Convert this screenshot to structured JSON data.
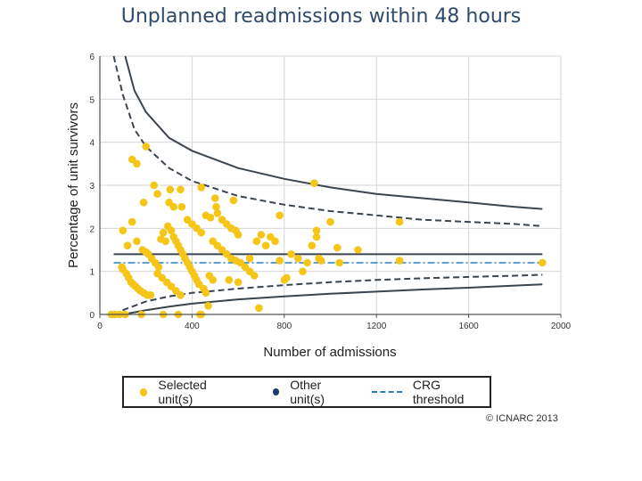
{
  "page_title": "Unplanned readmissions within 48 hours",
  "copyright": "© ICNARC 2013",
  "legend": {
    "selected": "Selected unit(s)",
    "other": "Other unit(s)",
    "threshold": "CRG threshold"
  },
  "colors": {
    "selected": "#f5c518",
    "other": "#1f3b66",
    "threshold": "#2a7fc0",
    "limits": "#3a4550",
    "title": "#2e4a6b"
  },
  "chart_data": {
    "type": "scatter",
    "title": "Unplanned readmissions within 48 hours",
    "xlabel": "Number of admissions",
    "ylabel": "Percentage of unit survivors",
    "xlim": [
      0,
      2000
    ],
    "ylim": [
      0,
      6
    ],
    "xticks": [
      0,
      400,
      800,
      1200,
      1600,
      2000
    ],
    "yticks": [
      0,
      1,
      2,
      3,
      4,
      5,
      6
    ],
    "grid": true,
    "national_average": 1.4,
    "crg_threshold": 1.2,
    "control_limits": [
      {
        "name": "upper 99.8%",
        "points": [
          [
            110,
            6.0
          ],
          [
            150,
            5.2
          ],
          [
            200,
            4.7
          ],
          [
            300,
            4.1
          ],
          [
            400,
            3.8
          ],
          [
            600,
            3.4
          ],
          [
            800,
            3.15
          ],
          [
            1000,
            2.95
          ],
          [
            1200,
            2.8
          ],
          [
            1400,
            2.7
          ],
          [
            1600,
            2.6
          ],
          [
            1800,
            2.5
          ],
          [
            1920,
            2.45
          ]
        ]
      },
      {
        "name": "upper 95%",
        "points": [
          [
            60,
            6.0
          ],
          [
            100,
            5.1
          ],
          [
            150,
            4.3
          ],
          [
            200,
            3.9
          ],
          [
            300,
            3.4
          ],
          [
            400,
            3.1
          ],
          [
            600,
            2.75
          ],
          [
            800,
            2.55
          ],
          [
            1000,
            2.4
          ],
          [
            1200,
            2.3
          ],
          [
            1400,
            2.2
          ],
          [
            1600,
            2.15
          ],
          [
            1800,
            2.1
          ],
          [
            1920,
            2.05
          ]
        ]
      },
      {
        "name": "lower 95%",
        "points": [
          [
            60,
            0.0
          ],
          [
            100,
            0.1
          ],
          [
            150,
            0.2
          ],
          [
            200,
            0.3
          ],
          [
            300,
            0.42
          ],
          [
            400,
            0.5
          ],
          [
            600,
            0.6
          ],
          [
            800,
            0.68
          ],
          [
            1000,
            0.75
          ],
          [
            1200,
            0.8
          ],
          [
            1400,
            0.84
          ],
          [
            1600,
            0.87
          ],
          [
            1800,
            0.9
          ],
          [
            1920,
            0.92
          ]
        ]
      },
      {
        "name": "lower 99.8%",
        "points": [
          [
            100,
            0.0
          ],
          [
            150,
            0.05
          ],
          [
            200,
            0.1
          ],
          [
            300,
            0.18
          ],
          [
            400,
            0.25
          ],
          [
            600,
            0.35
          ],
          [
            800,
            0.42
          ],
          [
            1000,
            0.48
          ],
          [
            1200,
            0.53
          ],
          [
            1400,
            0.58
          ],
          [
            1600,
            0.62
          ],
          [
            1800,
            0.67
          ],
          [
            1920,
            0.7
          ]
        ]
      }
    ],
    "series": [
      {
        "name": "Selected unit(s)",
        "points": [
          [
            50,
            0.0
          ],
          [
            65,
            0.0
          ],
          [
            85,
            0.0
          ],
          [
            110,
            0.0
          ],
          [
            180,
            0.0
          ],
          [
            275,
            0.0
          ],
          [
            340,
            0.0
          ],
          [
            435,
            0.0
          ],
          [
            440,
            0.0
          ],
          [
            690,
            0.15
          ],
          [
            470,
            0.2
          ],
          [
            95,
            1.1
          ],
          [
            100,
            1.05
          ],
          [
            115,
            0.95
          ],
          [
            125,
            0.85
          ],
          [
            135,
            0.75
          ],
          [
            145,
            0.7
          ],
          [
            155,
            0.65
          ],
          [
            165,
            0.6
          ],
          [
            175,
            0.55
          ],
          [
            190,
            0.5
          ],
          [
            205,
            0.45
          ],
          [
            220,
            0.45
          ],
          [
            140,
            3.6
          ],
          [
            160,
            3.5
          ],
          [
            200,
            3.9
          ],
          [
            235,
            3.0
          ],
          [
            250,
            2.8
          ],
          [
            305,
            2.9
          ],
          [
            350,
            2.9
          ],
          [
            440,
            2.95
          ],
          [
            300,
            2.6
          ],
          [
            320,
            2.5
          ],
          [
            355,
            2.5
          ],
          [
            190,
            2.6
          ],
          [
            140,
            2.15
          ],
          [
            100,
            1.95
          ],
          [
            120,
            1.6
          ],
          [
            160,
            1.7
          ],
          [
            185,
            1.5
          ],
          [
            200,
            1.45
          ],
          [
            210,
            1.4
          ],
          [
            225,
            1.3
          ],
          [
            240,
            1.2
          ],
          [
            255,
            1.1
          ],
          [
            265,
            1.75
          ],
          [
            275,
            1.9
          ],
          [
            285,
            1.7
          ],
          [
            295,
            2.05
          ],
          [
            310,
            1.95
          ],
          [
            320,
            1.8
          ],
          [
            330,
            1.7
          ],
          [
            340,
            1.6
          ],
          [
            350,
            1.5
          ],
          [
            360,
            1.4
          ],
          [
            370,
            1.3
          ],
          [
            380,
            1.2
          ],
          [
            390,
            1.1
          ],
          [
            400,
            1.0
          ],
          [
            410,
            0.9
          ],
          [
            420,
            0.8
          ],
          [
            430,
            0.7
          ],
          [
            450,
            0.6
          ],
          [
            460,
            0.5
          ],
          [
            475,
            0.9
          ],
          [
            490,
            0.8
          ],
          [
            250,
            0.95
          ],
          [
            270,
            0.85
          ],
          [
            290,
            0.75
          ],
          [
            310,
            0.65
          ],
          [
            330,
            0.55
          ],
          [
            350,
            0.45
          ],
          [
            380,
            2.2
          ],
          [
            400,
            2.1
          ],
          [
            420,
            2.0
          ],
          [
            440,
            1.9
          ],
          [
            460,
            2.3
          ],
          [
            480,
            2.25
          ],
          [
            500,
            2.7
          ],
          [
            505,
            2.5
          ],
          [
            510,
            2.35
          ],
          [
            530,
            2.2
          ],
          [
            550,
            2.1
          ],
          [
            570,
            2.0
          ],
          [
            580,
            2.65
          ],
          [
            590,
            1.95
          ],
          [
            600,
            1.85
          ],
          [
            490,
            1.7
          ],
          [
            510,
            1.6
          ],
          [
            530,
            1.5
          ],
          [
            550,
            1.4
          ],
          [
            570,
            1.3
          ],
          [
            590,
            1.25
          ],
          [
            610,
            1.2
          ],
          [
            630,
            1.1
          ],
          [
            650,
            1.0
          ],
          [
            670,
            0.9
          ],
          [
            560,
            0.8
          ],
          [
            600,
            0.75
          ],
          [
            650,
            1.3
          ],
          [
            680,
            1.7
          ],
          [
            700,
            1.85
          ],
          [
            720,
            1.6
          ],
          [
            740,
            1.8
          ],
          [
            760,
            1.7
          ],
          [
            780,
            1.25
          ],
          [
            800,
            0.8
          ],
          [
            810,
            0.85
          ],
          [
            830,
            1.4
          ],
          [
            860,
            1.3
          ],
          [
            880,
            1.0
          ],
          [
            900,
            1.2
          ],
          [
            920,
            1.6
          ],
          [
            930,
            3.05
          ],
          [
            940,
            1.8
          ],
          [
            950,
            1.3
          ],
          [
            960,
            1.25
          ],
          [
            1000,
            2.15
          ],
          [
            1030,
            1.55
          ],
          [
            1040,
            1.2
          ],
          [
            1120,
            1.5
          ],
          [
            1300,
            2.15
          ],
          [
            1300,
            1.25
          ],
          [
            1920,
            1.2
          ],
          [
            780,
            2.3
          ],
          [
            940,
            1.95
          ]
        ]
      },
      {
        "name": "Other unit(s)",
        "points": []
      }
    ]
  }
}
